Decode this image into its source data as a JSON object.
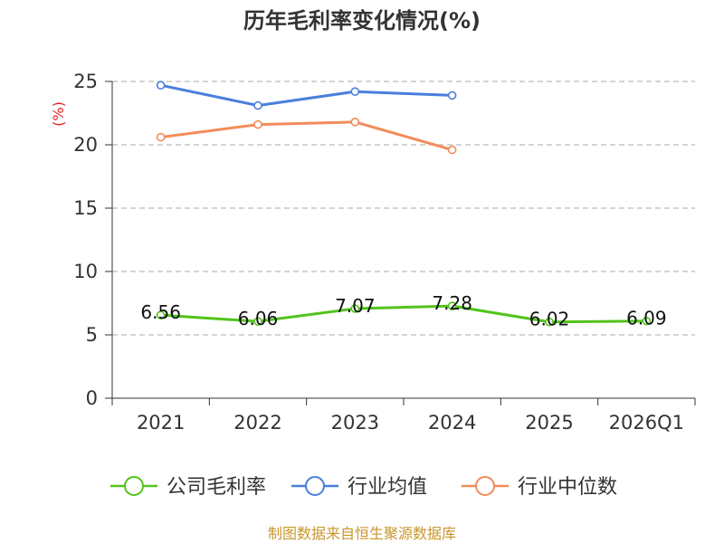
{
  "chart_data": {
    "type": "line",
    "title": "历年毛利率变化情况(%)",
    "ylabel": "(%)",
    "xlabel": "",
    "categories": [
      "2021",
      "2022",
      "2023",
      "2024",
      "2025",
      "2026Q1"
    ],
    "ylim": [
      0,
      25
    ],
    "yticks": [
      0,
      5,
      10,
      15,
      20,
      25
    ],
    "ytick_labels": [
      "0",
      "5",
      "10",
      "15",
      "20",
      "25"
    ],
    "grid": true,
    "legend_position": "bottom",
    "series": [
      {
        "name": "公司毛利率",
        "color": "#52c41a",
        "values": [
          6.56,
          6.06,
          7.07,
          7.28,
          6.02,
          6.09
        ],
        "labels": [
          "6.56",
          "6.06",
          "7.07",
          "7.28",
          "6.02",
          "6.09"
        ]
      },
      {
        "name": "行业均值",
        "color": "#4a7fdc",
        "values": [
          24.7,
          23.1,
          24.2,
          23.9,
          null,
          null
        ]
      },
      {
        "name": "行业中位数",
        "color": "#f28c5a",
        "values": [
          20.6,
          21.6,
          21.8,
          19.6,
          null,
          null
        ]
      }
    ]
  },
  "footer": {
    "text": "制图数据来自恒生聚源数据库",
    "color": "#c8962c"
  }
}
